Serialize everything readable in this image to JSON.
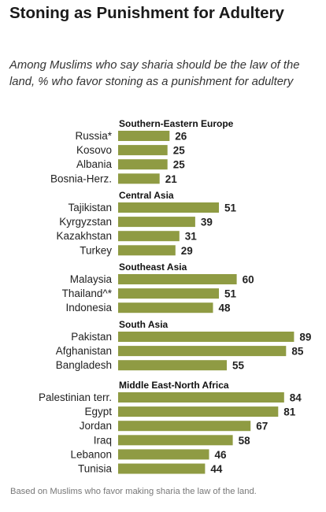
{
  "title": "Stoning as Punishment for Adultery",
  "subtitle": "Among Muslims who say sharia should be the law of the land, % who favor stoning as a punishment for adultery",
  "note": "Based on Muslims who favor making sharia the law of the land.",
  "colors": {
    "bar": "#8f9b43",
    "text": "#222222"
  },
  "chart_data": {
    "type": "bar",
    "orientation": "horizontal",
    "unit": "%",
    "groups": [
      {
        "name": "Southern-Eastern Europe",
        "items": [
          {
            "label": "Russia*",
            "value": 26
          },
          {
            "label": "Kosovo",
            "value": 25
          },
          {
            "label": "Albania",
            "value": 25
          },
          {
            "label": "Bosnia-Herz.",
            "value": 21
          }
        ]
      },
      {
        "name": "Central Asia",
        "items": [
          {
            "label": "Tajikistan",
            "value": 51
          },
          {
            "label": "Kyrgyzstan",
            "value": 39
          },
          {
            "label": "Kazakhstan",
            "value": 31
          },
          {
            "label": "Turkey",
            "value": 29
          }
        ]
      },
      {
        "name": "Southeast Asia",
        "items": [
          {
            "label": "Malaysia",
            "value": 60
          },
          {
            "label": "Thailand^*",
            "value": 51
          },
          {
            "label": "Indonesia",
            "value": 48
          }
        ]
      },
      {
        "name": "South Asia",
        "items": [
          {
            "label": "Pakistan",
            "value": 89
          },
          {
            "label": "Afghanistan",
            "value": 85
          },
          {
            "label": "Bangladesh",
            "value": 55
          }
        ]
      },
      {
        "name": "Middle East-North Africa",
        "items": [
          {
            "label": "Palestinian terr.",
            "value": 84
          },
          {
            "label": "Egypt",
            "value": 81
          },
          {
            "label": "Jordan",
            "value": 67
          },
          {
            "label": "Iraq",
            "value": 58
          },
          {
            "label": "Lebanon",
            "value": 46
          },
          {
            "label": "Tunisia",
            "value": 44
          }
        ]
      }
    ],
    "xlim": [
      0,
      100
    ],
    "grid": false,
    "legend": "none"
  }
}
